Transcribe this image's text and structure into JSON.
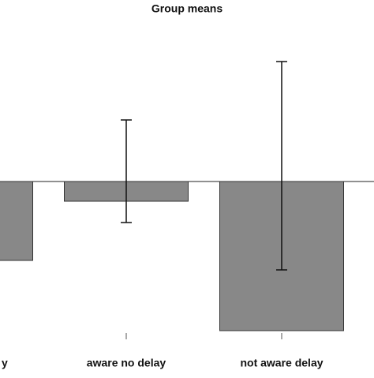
{
  "chart_data": {
    "type": "bar",
    "title": "Group means",
    "categories": [
      "y",
      "aware no delay",
      "not aware delay"
    ],
    "values": [
      -1.0,
      -0.25,
      -1.89
    ],
    "error_low": [
      null,
      -0.52,
      -1.12
    ],
    "error_high": [
      null,
      0.78,
      1.52
    ],
    "color": "#888888",
    "ylim": [
      -1.9,
      2.1
    ]
  }
}
